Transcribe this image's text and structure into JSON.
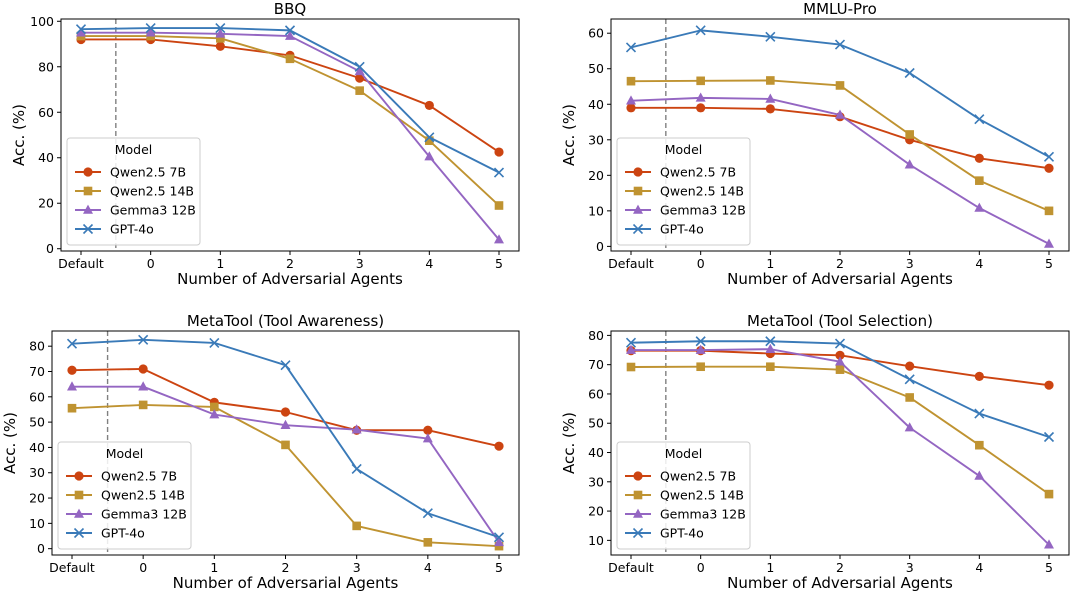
{
  "legend": {
    "title": "Model",
    "entries": [
      "Qwen2.5 7B",
      "Qwen2.5 14B",
      "Gemma3 12B",
      "GPT-4o"
    ]
  },
  "series_styles": [
    {
      "name": "Qwen2.5 7B",
      "color": "#cc4411",
      "marker": "circle"
    },
    {
      "name": "Qwen2.5 14B",
      "color": "#bf9331",
      "marker": "square"
    },
    {
      "name": "Gemma3 12B",
      "color": "#9466c2",
      "marker": "triangle"
    },
    {
      "name": "GPT-4o",
      "color": "#3a7ab8",
      "marker": "x"
    }
  ],
  "chart_data": [
    {
      "type": "line",
      "title": "BBQ",
      "xlabel": "Number of Adversarial Agents",
      "ylabel": "Acc. (%)",
      "categories": [
        "Default",
        "0",
        "1",
        "2",
        "3",
        "4",
        "5"
      ],
      "yticks": [
        0,
        20,
        40,
        60,
        80,
        100
      ],
      "ylim": [
        -1,
        101
      ],
      "legend_position": "lower-left",
      "series": [
        {
          "name": "Qwen2.5 7B",
          "values": [
            92,
            92,
            89,
            85,
            75,
            63,
            42.5
          ]
        },
        {
          "name": "Qwen2.5 14B",
          "values": [
            93.5,
            93.5,
            92.5,
            83.5,
            69.5,
            47.5,
            19
          ]
        },
        {
          "name": "Gemma3 12B",
          "values": [
            95,
            95,
            94.5,
            93.5,
            78,
            40.5,
            4
          ]
        },
        {
          "name": "GPT-4o",
          "values": [
            96.5,
            97,
            97,
            96,
            80,
            49,
            33.5
          ]
        }
      ]
    },
    {
      "type": "line",
      "title": "MMLU-Pro",
      "xlabel": "Number of Adversarial Agents",
      "ylabel": "Acc. (%)",
      "categories": [
        "Default",
        "0",
        "1",
        "2",
        "3",
        "4",
        "5"
      ],
      "yticks": [
        0,
        10,
        20,
        30,
        40,
        50,
        60
      ],
      "ylim": [
        -1.3,
        64
      ],
      "legend_position": "lower-left",
      "series": [
        {
          "name": "Qwen2.5 7B",
          "values": [
            39,
            39,
            38.7,
            36.5,
            30,
            24.8,
            22
          ]
        },
        {
          "name": "Qwen2.5 14B",
          "values": [
            46.5,
            46.6,
            46.7,
            45.3,
            31.5,
            18.5,
            10
          ]
        },
        {
          "name": "Gemma3 12B",
          "values": [
            41,
            41.8,
            41.5,
            37,
            23,
            10.8,
            0.7
          ]
        },
        {
          "name": "GPT-4o",
          "values": [
            56,
            60.8,
            59,
            56.8,
            48.8,
            35.8,
            25.2
          ]
        }
      ]
    },
    {
      "type": "line",
      "title": "MetaTool (Tool Awareness)",
      "xlabel": "Number of Adversarial Agents",
      "ylabel": "Acc. (%)",
      "categories": [
        "Default",
        "0",
        "1",
        "2",
        "3",
        "4",
        "5"
      ],
      "yticks": [
        0,
        10,
        20,
        30,
        40,
        50,
        60,
        70,
        80
      ],
      "ylim": [
        -2.5,
        86
      ],
      "legend_position": "lower-left",
      "series": [
        {
          "name": "Qwen2.5 7B",
          "values": [
            70.5,
            71,
            57.8,
            54,
            46.8,
            46.8,
            40.5
          ]
        },
        {
          "name": "Qwen2.5 14B",
          "values": [
            55.5,
            56.8,
            56,
            41,
            9,
            2.5,
            1
          ]
        },
        {
          "name": "Gemma3 12B",
          "values": [
            64,
            64,
            53,
            48.8,
            47,
            43.5,
            2.5
          ]
        },
        {
          "name": "GPT-4o",
          "values": [
            81,
            82.5,
            81.3,
            72.5,
            31.5,
            14,
            4.5
          ]
        }
      ]
    },
    {
      "type": "line",
      "title": "MetaTool (Tool Selection)",
      "xlabel": "Number of Adversarial Agents",
      "ylabel": "Acc. (%)",
      "categories": [
        "Default",
        "0",
        "1",
        "2",
        "3",
        "4",
        "5"
      ],
      "yticks": [
        10,
        20,
        30,
        40,
        50,
        60,
        70,
        80
      ],
      "ylim": [
        5,
        81.5
      ],
      "legend_position": "lower-left",
      "series": [
        {
          "name": "Qwen2.5 7B",
          "values": [
            74.8,
            74.8,
            73.8,
            73.2,
            69.5,
            66,
            63
          ]
        },
        {
          "name": "Qwen2.5 14B",
          "values": [
            69.2,
            69.3,
            69.3,
            68.3,
            58.8,
            42.5,
            25.8
          ]
        },
        {
          "name": "Gemma3 12B",
          "values": [
            75,
            75,
            75.3,
            71,
            48.5,
            32,
            8.5
          ]
        },
        {
          "name": "GPT-4o",
          "values": [
            77.5,
            78,
            78,
            77.2,
            65,
            53.3,
            45.3
          ]
        }
      ]
    }
  ]
}
